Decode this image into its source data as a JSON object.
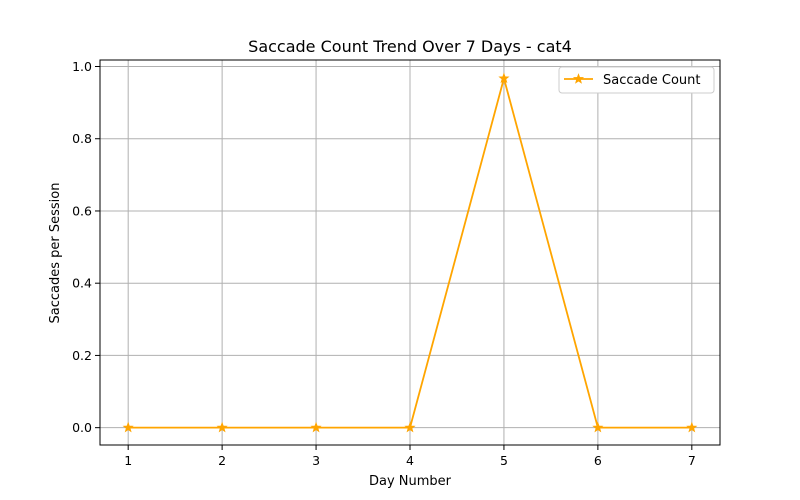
{
  "chart_data": {
    "type": "line",
    "title": "Saccade Count Trend Over 7 Days - cat4",
    "xlabel": "Day Number",
    "ylabel": "Saccades per Session",
    "x": [
      1,
      2,
      3,
      4,
      5,
      6,
      7
    ],
    "xticks": [
      "1",
      "2",
      "3",
      "4",
      "5",
      "6",
      "7"
    ],
    "yticks": [
      "0.0",
      "0.2",
      "0.4",
      "0.6",
      "0.8",
      "1.0"
    ],
    "xlim": [
      0.7,
      7.3
    ],
    "ylim": [
      -0.048,
      1.018
    ],
    "grid": true,
    "legend_position": "top-right",
    "series": [
      {
        "name": "Saccade Count",
        "color": "#ffa500",
        "marker": "star",
        "values": [
          0,
          0,
          0,
          0,
          0.967,
          0,
          0
        ]
      }
    ]
  }
}
